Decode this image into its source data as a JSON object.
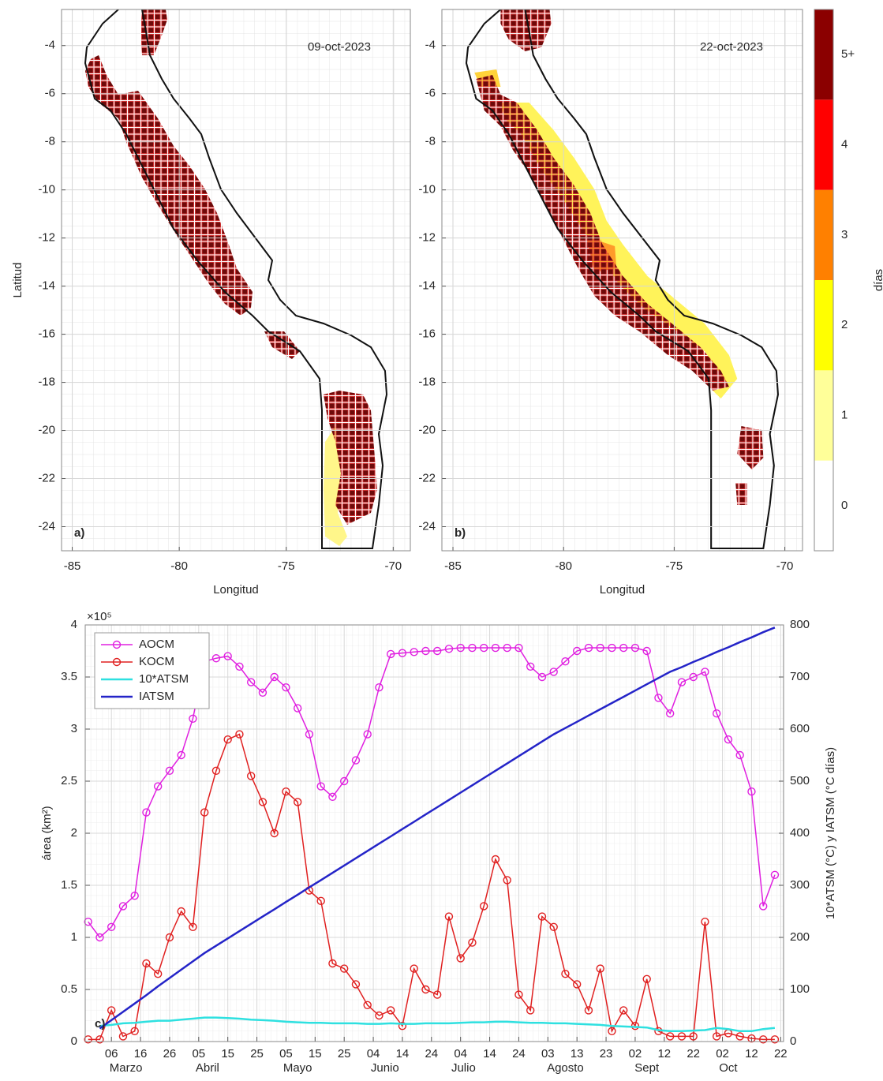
{
  "chart_data": [
    {
      "type": "map",
      "title": "09-oct-2023",
      "panel_label": "a)",
      "xlabel": "Longitud",
      "ylabel": "Latitud",
      "xlim": [
        -85.5,
        -69.2
      ],
      "ylim": [
        -25,
        -2.5
      ],
      "xticks": [
        -85,
        -80,
        -75,
        -70
      ],
      "yticks": [
        -4,
        -6,
        -8,
        -10,
        -12,
        -14,
        -16,
        -18,
        -20,
        -22,
        -24
      ],
      "grid": true
    },
    {
      "type": "map",
      "title": "22-oct-2023",
      "panel_label": "b)",
      "xlabel": "Longitud",
      "xlim": [
        -85.5,
        -69.2
      ],
      "ylim": [
        -25,
        -2.5
      ],
      "xticks": [
        -85,
        -80,
        -75,
        -70
      ],
      "yticks": [
        -4,
        -6,
        -8,
        -10,
        -12,
        -14,
        -16,
        -18,
        -20,
        -22,
        -24
      ],
      "grid": true,
      "colorbar": {
        "label": "días",
        "ticks": [
          0,
          1,
          2,
          3,
          4,
          {
            "value": 5,
            "label": "5+"
          }
        ],
        "colors": [
          "#ffffff",
          "#ffff99",
          "#ffff00",
          "#ff8000",
          "#ff0000",
          "#8b0000"
        ]
      }
    },
    {
      "type": "line",
      "panel_label": "c)",
      "ylabel": "área (km²)",
      "y2label": "10*ATSM (°C) y IATSM (°C días)",
      "y_scale_note": "×10⁵",
      "y_color": "#b8405a",
      "y2_color": "#2a8fb5",
      "legend": "upper left",
      "grid": true,
      "xlim": [
        -4,
        236
      ],
      "ylim": [
        0,
        4
      ],
      "y2lim": [
        0,
        800
      ],
      "xticks": [
        {
          "value": 5,
          "label": "06"
        },
        {
          "value": 15,
          "label": "16"
        },
        {
          "value": 25,
          "label": "26"
        },
        {
          "value": 35,
          "label": "05"
        },
        {
          "value": 45,
          "label": "15"
        },
        {
          "value": 55,
          "label": "25"
        },
        {
          "value": 65,
          "label": "05"
        },
        {
          "value": 75,
          "label": "15"
        },
        {
          "value": 85,
          "label": "25"
        },
        {
          "value": 95,
          "label": "04"
        },
        {
          "value": 105,
          "label": "14"
        },
        {
          "value": 115,
          "label": "24"
        },
        {
          "value": 125,
          "label": "04"
        },
        {
          "value": 135,
          "label": "14"
        },
        {
          "value": 145,
          "label": "24"
        },
        {
          "value": 155,
          "label": "03"
        },
        {
          "value": 165,
          "label": "13"
        },
        {
          "value": 175,
          "label": "23"
        },
        {
          "value": 185,
          "label": "02"
        },
        {
          "value": 195,
          "label": "12"
        },
        {
          "value": 205,
          "label": "22"
        },
        {
          "value": 215,
          "label": "02"
        },
        {
          "value": 225,
          "label": "12"
        },
        {
          "value": 235,
          "label": "22"
        }
      ],
      "x_groups": [
        {
          "value": 10,
          "label": "Marzo"
        },
        {
          "value": 38,
          "label": "Abril"
        },
        {
          "value": 69,
          "label": "Mayo"
        },
        {
          "value": 99,
          "label": "Junio"
        },
        {
          "value": 126,
          "label": "Julio"
        },
        {
          "value": 161,
          "label": "Agosto"
        },
        {
          "value": 189,
          "label": "Sept"
        },
        {
          "value": 217,
          "label": "Oct"
        }
      ],
      "yticks": [
        0,
        0.5,
        1,
        1.5,
        2,
        2.5,
        3,
        3.5,
        4
      ],
      "y2ticks": [
        0,
        100,
        200,
        300,
        400,
        500,
        600,
        700,
        800
      ],
      "x": [
        -3,
        1,
        5,
        9,
        13,
        17,
        21,
        25,
        29,
        33,
        37,
        41,
        45,
        49,
        53,
        57,
        61,
        65,
        69,
        73,
        77,
        81,
        85,
        89,
        93,
        97,
        101,
        105,
        109,
        113,
        117,
        121,
        125,
        129,
        133,
        137,
        141,
        145,
        149,
        153,
        157,
        161,
        165,
        169,
        173,
        177,
        181,
        185,
        189,
        193,
        197,
        201,
        205,
        209,
        213,
        217,
        221,
        225,
        229,
        233
      ],
      "series": [
        {
          "name": "AOCM",
          "color": "#e020e0",
          "marker": "o",
          "values": [
            1.15,
            1.0,
            1.1,
            1.3,
            1.4,
            2.2,
            2.45,
            2.6,
            2.75,
            3.1,
            3.65,
            3.68,
            3.7,
            3.6,
            3.45,
            3.35,
            3.5,
            3.4,
            3.2,
            2.95,
            2.45,
            2.35,
            2.5,
            2.7,
            2.95,
            3.4,
            3.72,
            3.73,
            3.74,
            3.75,
            3.75,
            3.77,
            3.78,
            3.78,
            3.78,
            3.78,
            3.78,
            3.78,
            3.6,
            3.5,
            3.55,
            3.65,
            3.75,
            3.78,
            3.78,
            3.78,
            3.78,
            3.78,
            3.75,
            3.3,
            3.15,
            3.45,
            3.5,
            3.55,
            3.15,
            2.9,
            2.75,
            2.4,
            1.3,
            1.6
          ]
        },
        {
          "name": "KOCM",
          "color": "#e02020",
          "marker": "o",
          "values": [
            0.02,
            0.02,
            0.3,
            0.05,
            0.1,
            0.75,
            0.65,
            1.0,
            1.25,
            1.1,
            2.2,
            2.6,
            2.9,
            2.95,
            2.55,
            2.3,
            2.0,
            2.4,
            2.3,
            1.45,
            1.35,
            0.75,
            0.7,
            0.55,
            0.35,
            0.25,
            0.3,
            0.15,
            0.7,
            0.5,
            0.45,
            1.2,
            0.8,
            0.95,
            1.3,
            1.75,
            1.55,
            0.45,
            0.3,
            1.2,
            1.1,
            0.65,
            0.55,
            0.3,
            0.7,
            0.1,
            0.3,
            0.15,
            0.6,
            0.1,
            0.05,
            0.05,
            0.05,
            1.15,
            0.05,
            0.08,
            0.05,
            0.03,
            0.02,
            0.02
          ]
        },
        {
          "name": "10*ATSM",
          "color": "#2ee0e0",
          "axis": "y2",
          "values": [
            null,
            30,
            32,
            35,
            36,
            38,
            40,
            40,
            42,
            44,
            46,
            46,
            45,
            44,
            42,
            41,
            40,
            38,
            37,
            36,
            36,
            35,
            35,
            35,
            34,
            34,
            35,
            34,
            34,
            35,
            35,
            35,
            36,
            37,
            37,
            38,
            38,
            37,
            36,
            36,
            35,
            35,
            34,
            33,
            32,
            30,
            29,
            28,
            27,
            22,
            20,
            20,
            21,
            22,
            26,
            24,
            20,
            20,
            24,
            26
          ]
        },
        {
          "name": "IATSM",
          "color": "#2424c8",
          "axis": "y2",
          "values": [
            null,
            25,
            41,
            57,
            73,
            89,
            106,
            122,
            138,
            154,
            170,
            184,
            198,
            212,
            226,
            240,
            254,
            268,
            282,
            296,
            310,
            324,
            338,
            352,
            366,
            380,
            394,
            408,
            422,
            436,
            450,
            464,
            478,
            492,
            506,
            520,
            534,
            548,
            562,
            576,
            590,
            602,
            614,
            626,
            638,
            650,
            662,
            674,
            686,
            698,
            710,
            719,
            729,
            738,
            748,
            757,
            767,
            776,
            786,
            795
          ]
        }
      ]
    }
  ]
}
